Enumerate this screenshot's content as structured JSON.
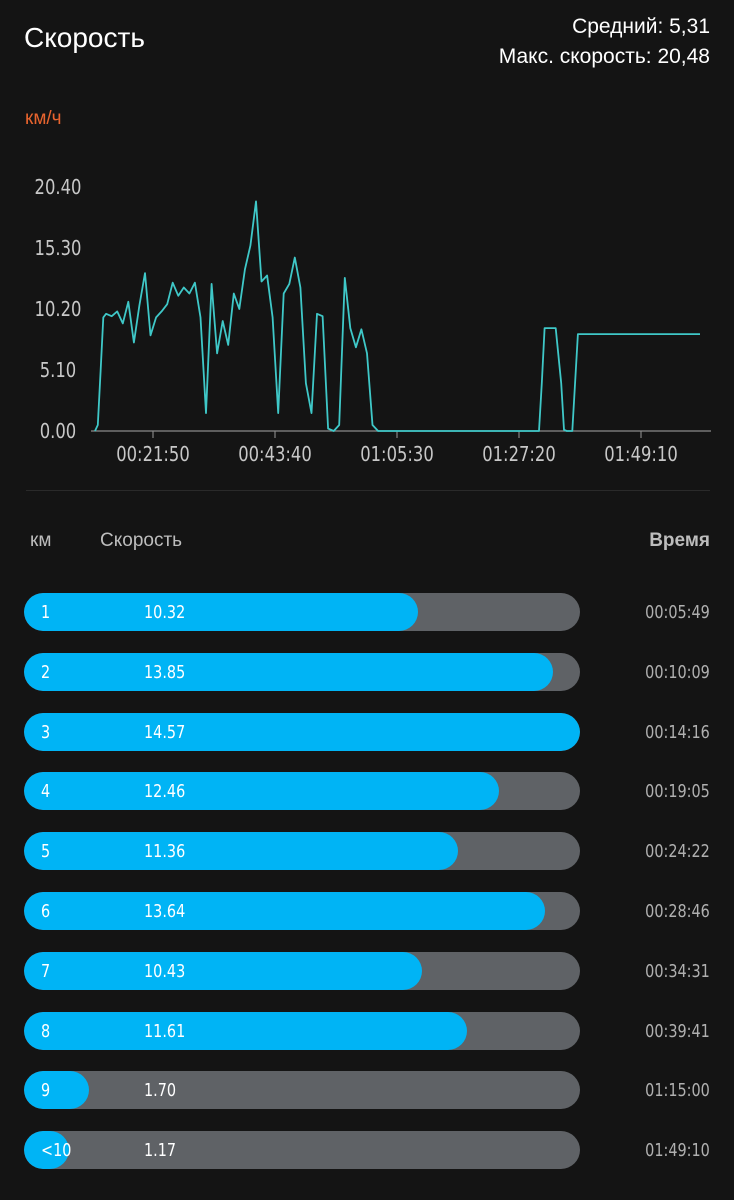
{
  "header": {
    "title": "Скорость",
    "average": "Средний: 5,31",
    "max_speed": "Макс. скорость: 20,48"
  },
  "chart": {
    "unit_label": "км/ч",
    "line_color": "#3fc8c8"
  },
  "chart_data": {
    "type": "line",
    "ylabel": "км/ч",
    "y_ticks": [
      "0.00",
      "5.10",
      "10.20",
      "15.30",
      "20.40"
    ],
    "x_ticks": [
      "00:21:50",
      "00:43:40",
      "01:05:30",
      "01:27:20",
      "01:49:10"
    ],
    "ylim": [
      0,
      20.4
    ],
    "x_unit": "minutes",
    "x_range": [
      0,
      109
    ],
    "series": [
      {
        "x": [
          0,
          0.5,
          1,
          1.5,
          2,
          3,
          4,
          5,
          6,
          7,
          8,
          9,
          10,
          11,
          12,
          13,
          14,
          15,
          16,
          17,
          18,
          19,
          20,
          21,
          22,
          23,
          24,
          25,
          26,
          27,
          28,
          29,
          30,
          31,
          32,
          33,
          34,
          35,
          36,
          37,
          38,
          39,
          40,
          41,
          42,
          43,
          44,
          45,
          46,
          47,
          48,
          49,
          50,
          51,
          52,
          53,
          54,
          55,
          56,
          57,
          58,
          59,
          60,
          62,
          64,
          66,
          68,
          70,
          72,
          74,
          76,
          78,
          80,
          80.5,
          81,
          82,
          83,
          84,
          84.5,
          85,
          86,
          87,
          88,
          90,
          95,
          100,
          105,
          109
        ],
        "y": [
          0,
          0.5,
          5,
          9.5,
          9.8,
          9.6,
          10,
          9,
          10.8,
          7.4,
          10.5,
          13.2,
          8,
          9.5,
          10,
          10.6,
          12.4,
          11.3,
          12,
          11.5,
          12.4,
          9.5,
          1.5,
          12.3,
          6.5,
          9.2,
          7.2,
          11.5,
          10.2,
          13.5,
          15.5,
          19.2,
          12.5,
          13,
          9.5,
          1.5,
          11.5,
          12.3,
          14.5,
          12,
          4,
          1.5,
          9.8,
          9.6,
          0.2,
          0,
          0.5,
          12.8,
          8.6,
          7,
          8.5,
          6.5,
          0.5,
          0,
          0,
          0,
          0,
          0,
          0,
          0,
          0,
          0,
          0,
          0,
          0,
          0,
          0,
          0,
          0,
          0,
          0,
          0,
          0,
          4,
          8.6,
          8.6,
          8.6,
          4,
          0.1,
          0,
          0,
          8.1,
          8.1,
          8.1,
          8.1,
          8.1,
          8.1,
          8.1
        ]
      }
    ],
    "grid": false
  },
  "table": {
    "headers": {
      "km": "км",
      "speed": "Скорость",
      "time": "Время"
    },
    "max_speed": 14.57,
    "rows": [
      {
        "km": "1",
        "speed": "10.32",
        "value": 10.32,
        "time": "00:05:49"
      },
      {
        "km": "2",
        "speed": "13.85",
        "value": 13.85,
        "time": "00:10:09"
      },
      {
        "km": "3",
        "speed": "14.57",
        "value": 14.57,
        "time": "00:14:16"
      },
      {
        "km": "4",
        "speed": "12.46",
        "value": 12.46,
        "time": "00:19:05"
      },
      {
        "km": "5",
        "speed": "11.36",
        "value": 11.36,
        "time": "00:24:22"
      },
      {
        "km": "6",
        "speed": "13.64",
        "value": 13.64,
        "time": "00:28:46"
      },
      {
        "km": "7",
        "speed": "10.43",
        "value": 10.43,
        "time": "00:34:31"
      },
      {
        "km": "8",
        "speed": "11.61",
        "value": 11.61,
        "time": "00:39:41"
      },
      {
        "km": "9",
        "speed": "1.70",
        "value": 1.7,
        "time": "01:15:00"
      },
      {
        "km": "<10",
        "speed": "1.17",
        "value": 1.17,
        "time": "01:49:10"
      }
    ]
  },
  "colors": {
    "bar_fill": "#00b4f5",
    "bar_track": "#5f6266",
    "unit_accent": "#e8642e",
    "background": "#141414"
  }
}
